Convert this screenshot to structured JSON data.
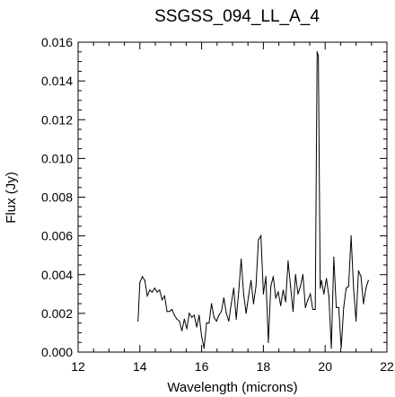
{
  "chart_data": {
    "type": "line",
    "title": "SSGSS_094_LL_A_4",
    "xlabel": "Wavelength (microns)",
    "ylabel": "Flux (Jy)",
    "xlim": [
      12,
      22
    ],
    "ylim": [
      0,
      0.016
    ],
    "x_ticks": [
      "12",
      "14",
      "16",
      "18",
      "20",
      "22"
    ],
    "y_ticks": [
      "0.000",
      "0.002",
      "0.004",
      "0.006",
      "0.008",
      "0.010",
      "0.012",
      "0.014",
      "0.016"
    ],
    "grid": false,
    "series": [
      {
        "x": [
          13.94,
          14.0,
          14.08,
          14.16,
          14.24,
          14.32,
          14.4,
          14.48,
          14.56,
          14.64,
          14.72,
          14.8,
          14.88,
          14.96,
          15.04,
          15.12,
          15.2,
          15.28,
          15.36,
          15.44,
          15.52,
          15.6,
          15.68,
          15.76,
          15.84,
          15.92,
          16.0,
          16.08,
          16.16,
          16.24,
          16.32,
          16.4,
          16.48,
          16.56,
          16.64,
          16.72,
          16.8,
          16.88,
          16.96,
          17.04,
          17.12,
          17.2,
          17.28,
          17.36,
          17.44,
          17.52,
          17.6,
          17.68,
          17.76,
          17.84,
          17.92,
          18.0,
          18.08,
          18.16,
          18.24,
          18.32,
          18.4,
          18.48,
          18.56,
          18.64,
          18.72,
          18.8,
          18.88,
          18.96,
          19.04,
          19.12,
          19.2,
          19.28,
          19.36,
          19.44,
          19.52,
          19.6,
          19.68,
          19.74,
          19.78,
          19.84,
          19.88,
          19.96,
          20.04,
          20.12,
          20.2,
          20.28,
          20.36,
          20.44,
          20.52,
          20.6,
          20.68,
          20.76,
          20.84,
          20.92,
          21.0,
          21.08,
          21.16,
          21.24,
          21.32,
          21.4
        ],
        "values": [
          0.0016,
          0.0036,
          0.0039,
          0.0037,
          0.0029,
          0.0032,
          0.0031,
          0.0033,
          0.0031,
          0.0032,
          0.0027,
          0.0029,
          0.0021,
          0.0021,
          0.0022,
          0.0019,
          0.0017,
          0.0016,
          0.0011,
          0.0017,
          0.0012,
          0.002,
          0.0018,
          0.0019,
          0.0013,
          0.0019,
          0.0008,
          0.0002,
          0.0015,
          0.0015,
          0.0025,
          0.0018,
          0.0016,
          0.0019,
          0.0021,
          0.0028,
          0.002,
          0.0016,
          0.0025,
          0.0033,
          0.0017,
          0.0031,
          0.0048,
          0.003,
          0.002,
          0.0029,
          0.0037,
          0.0025,
          0.0034,
          0.0058,
          0.006,
          0.003,
          0.0039,
          0.0005,
          0.0034,
          0.0039,
          0.0028,
          0.0031,
          0.0024,
          0.0032,
          0.0026,
          0.0047,
          0.0034,
          0.0021,
          0.004,
          0.003,
          0.0034,
          0.004,
          0.0023,
          0.0027,
          0.003,
          0.0022,
          0.0022,
          0.0155,
          0.0153,
          0.0033,
          0.0037,
          0.003,
          0.0038,
          0.0029,
          0.0002,
          0.0049,
          0.0023,
          0.0023,
          0.0002,
          0.0023,
          0.0033,
          0.0034,
          0.006,
          0.0033,
          0.0016,
          0.0042,
          0.0039,
          0.0025,
          0.0033,
          0.0037
        ]
      }
    ]
  }
}
